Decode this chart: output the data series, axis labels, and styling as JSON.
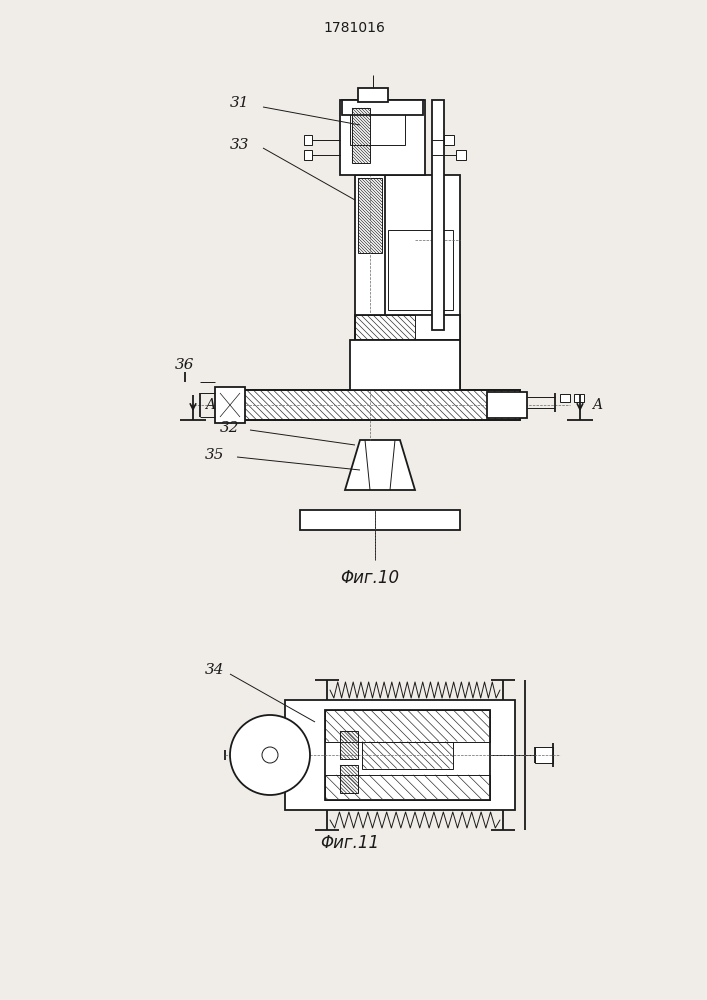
{
  "title": "1781016",
  "fig10_caption": "Φиг.10",
  "fig11_caption": "Φиг.11",
  "bg_color": "#f0ede8",
  "line_color": "#1a1a1a",
  "lw_main": 1.3,
  "lw_thin": 0.7,
  "lw_thick": 2.0
}
